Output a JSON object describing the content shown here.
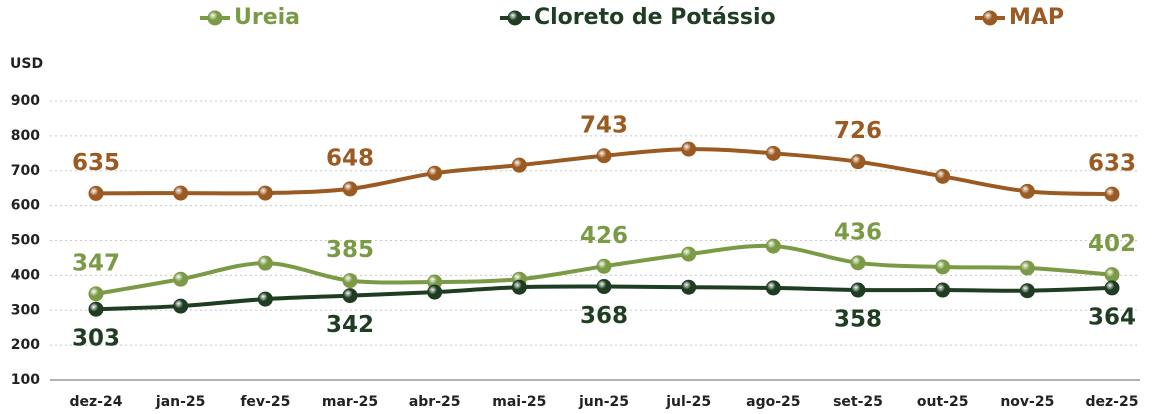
{
  "chart_data": {
    "type": "line",
    "y_unit": "USD",
    "categories": [
      "dez-24",
      "jan-25",
      "fev-25",
      "mar-25",
      "abr-25",
      "mai-25",
      "jun-25",
      "jul-25",
      "ago-25",
      "set-25",
      "out-25",
      "nov-25",
      "dez-25"
    ],
    "series": [
      {
        "name": "Ureia",
        "color": "#7b9a46",
        "label_side": "above",
        "values": [
          347,
          389,
          435,
          385,
          381,
          389,
          426,
          461,
          484,
          436,
          424,
          421,
          402
        ],
        "value_labels": [
          "347",
          null,
          null,
          "385",
          null,
          null,
          "426",
          null,
          null,
          "436",
          null,
          null,
          "402"
        ]
      },
      {
        "name": "Cloreto de Potássio",
        "color": "#1f3d22",
        "label_side": "below",
        "values": [
          303,
          312,
          332,
          342,
          352,
          366,
          368,
          366,
          364,
          358,
          358,
          356,
          364
        ],
        "value_labels": [
          "303",
          null,
          null,
          "342",
          null,
          null,
          "368",
          null,
          null,
          "358",
          null,
          null,
          "364"
        ]
      },
      {
        "name": "MAP",
        "color": "#9a5a22",
        "label_side": "above",
        "values": [
          635,
          636,
          636,
          648,
          693,
          716,
          743,
          762,
          750,
          726,
          684,
          641,
          633
        ],
        "value_labels": [
          "635",
          null,
          null,
          "648",
          null,
          null,
          "743",
          null,
          null,
          "726",
          null,
          null,
          "633"
        ]
      }
    ],
    "ylim": [
      100,
      900
    ],
    "yticks": [
      100,
      200,
      300,
      400,
      500,
      600,
      700,
      800,
      900
    ],
    "grid": true
  }
}
